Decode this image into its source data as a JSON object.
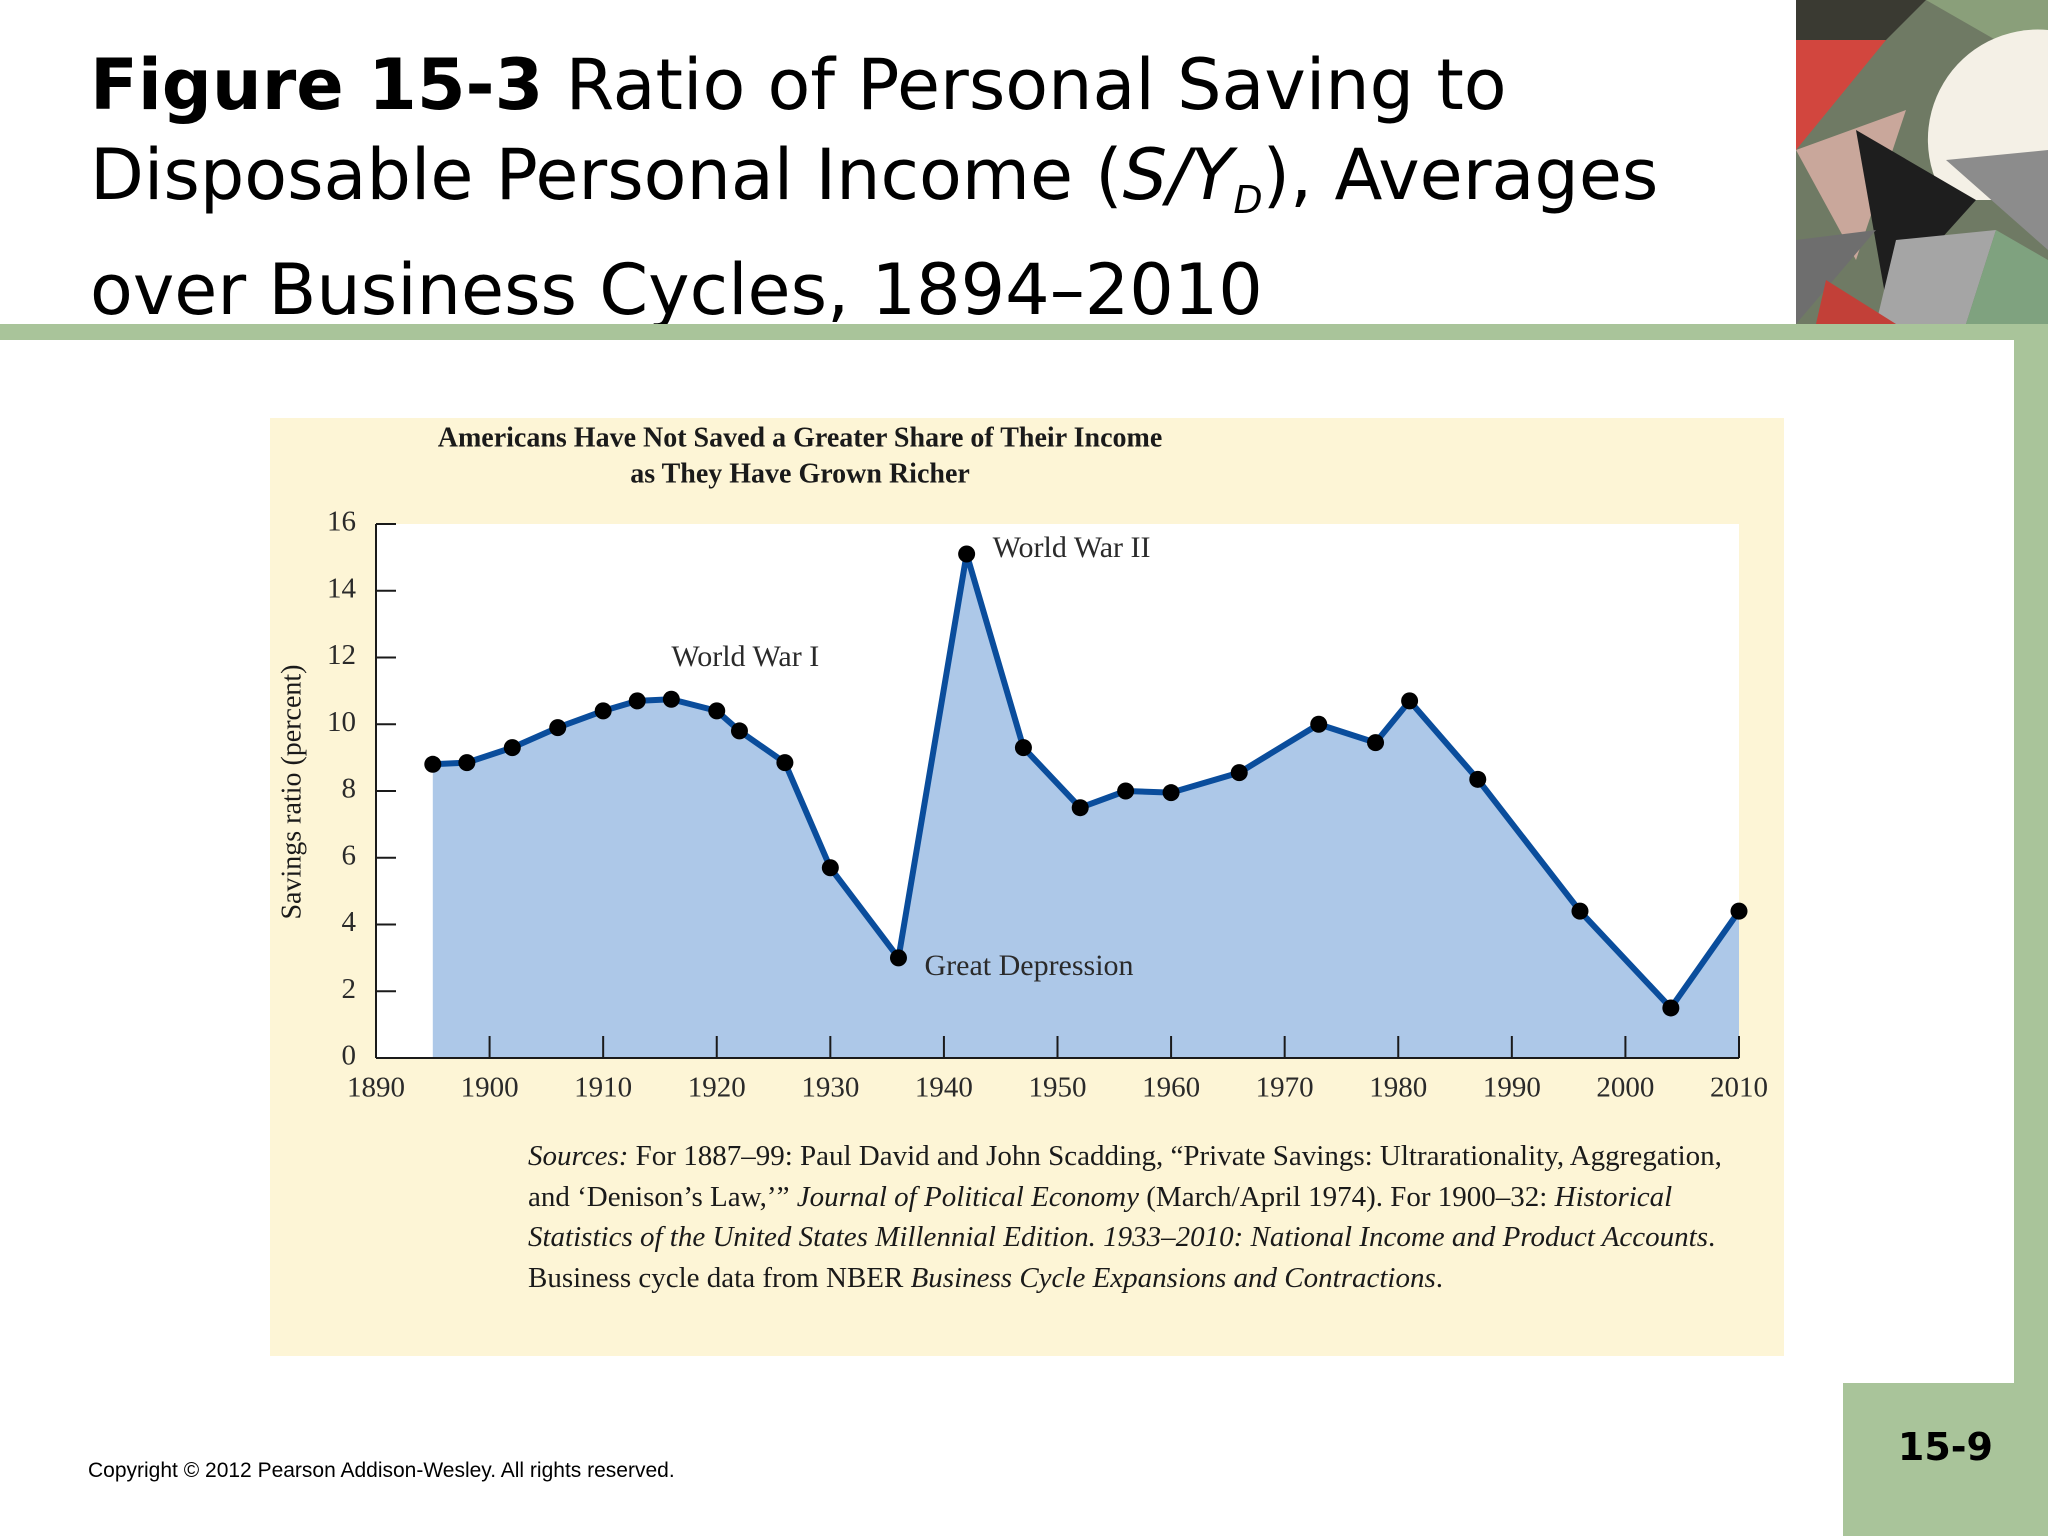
{
  "slide": {
    "figure_label": "Figure 15-3",
    "title_part1": "Ratio of Personal Saving to Disposable Personal Income (",
    "title_s": "S/Y",
    "title_sub": "D",
    "title_part2": "), Averages over Business Cycles, 1894–2010",
    "page_number": "15-9",
    "copyright": "Copyright © 2012 Pearson Addison-Wesley. All rights reserved."
  },
  "colors": {
    "accent_green": "#a9c49a",
    "panel_bg": "#fdf5d6",
    "area_fill": "#adc8e8",
    "line": "#0a4d9c",
    "marker": "#000000"
  },
  "chart_data": {
    "type": "area",
    "title_line1": "Americans Have Not Saved a Greater Share of Their Income",
    "title_line2": "as They Have Grown Richer",
    "ylabel": "Savings ratio (percent)",
    "xlabel": "",
    "xlim": [
      1890,
      2010
    ],
    "ylim": [
      0,
      16
    ],
    "x_ticks": [
      1890,
      1900,
      1910,
      1920,
      1930,
      1940,
      1950,
      1960,
      1970,
      1980,
      1990,
      2000,
      2010
    ],
    "y_ticks": [
      0,
      2,
      4,
      6,
      8,
      10,
      12,
      14,
      16
    ],
    "grid": false,
    "series": [
      {
        "x": [
          1895,
          1898,
          1902,
          1906,
          1910,
          1913,
          1916,
          1920,
          1922,
          1926,
          1930,
          1936,
          1942,
          1947,
          1952,
          1956,
          1960,
          1966,
          1973,
          1978,
          1981,
          1987,
          1996,
          2004,
          2010
        ],
        "y": [
          8.8,
          8.85,
          9.3,
          9.9,
          10.4,
          10.7,
          10.75,
          10.4,
          9.8,
          8.85,
          5.7,
          3.0,
          15.1,
          9.3,
          7.5,
          8.0,
          7.95,
          8.55,
          10.0,
          9.45,
          10.7,
          8.35,
          4.4,
          1.5,
          4.4
        ]
      }
    ],
    "annotations": [
      {
        "text": "World War I",
        "x": 1916,
        "y": 10.75
      },
      {
        "text": "World War II",
        "x": 1942,
        "y": 15.1
      },
      {
        "text": "Great Depression",
        "x": 1936,
        "y": 3.0
      }
    ],
    "sources": {
      "label": "Sources:",
      "t1": " For 1887–99: Paul David and John Scadding, “Private Savings: Ultrarationality, Aggregation, and ‘Denison’s Law,’” ",
      "i1": "Journal of Political Economy",
      "t2": " (March/April 1974). For 1900–32: ",
      "i2": "Historical Statistics of the United States Millennial Edition. 1933–2010: National Income and Product Accounts",
      "t3": ". Business cycle data from NBER ",
      "i3": "Business Cycle Expansions and Contractions",
      "t4": "."
    }
  }
}
